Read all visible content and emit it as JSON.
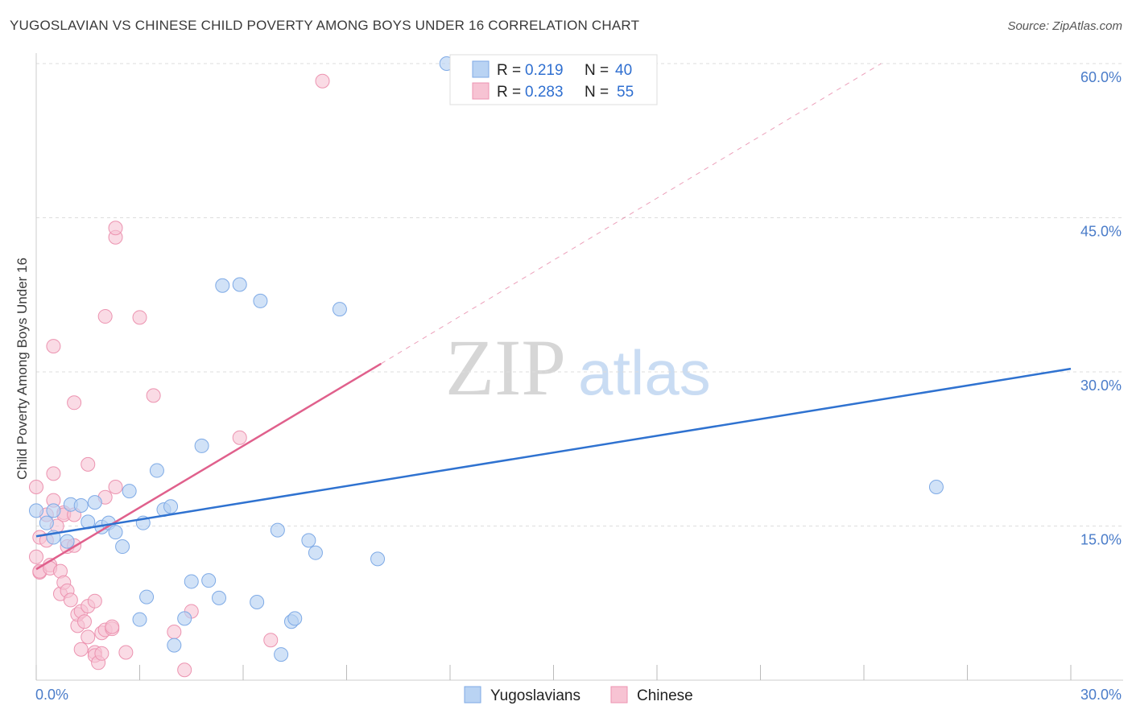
{
  "title": "YUGOSLAVIAN VS CHINESE CHILD POVERTY AMONG BOYS UNDER 16 CORRELATION CHART",
  "source": "Source: ZipAtlas.com",
  "watermark": {
    "zip": "ZIP",
    "atlas": "atlas"
  },
  "colors": {
    "blue_fill": "#b9d3f3",
    "blue_stroke": "#7eaae6",
    "blue_line": "#2f72d0",
    "pink_fill": "#f7c3d3",
    "pink_stroke": "#ec93b0",
    "pink_line": "#e0608c",
    "grid": "#dddddd",
    "axis_text": "#4a7cc9"
  },
  "legend": {
    "r_label": "R =",
    "n_label": "N =",
    "rows": [
      {
        "r": "0.219",
        "n": "40"
      },
      {
        "r": "0.283",
        "n": "55"
      }
    ]
  },
  "bottom_legend": [
    "Yugoslavians",
    "Chinese"
  ],
  "chart_data": {
    "type": "scatter",
    "title": "YUGOSLAVIAN VS CHINESE CHILD POVERTY AMONG BOYS UNDER 16 CORRELATION CHART",
    "xlabel": "",
    "ylabel": "Child Poverty Among Boys Under 16",
    "xlim": [
      0,
      30
    ],
    "ylim": [
      0,
      60
    ],
    "x_tick_labels": [
      "0.0%",
      "30.0%"
    ],
    "y_ticks": [
      15,
      30,
      45,
      60
    ],
    "y_tick_labels": [
      "15.0%",
      "30.0%",
      "45.0%",
      "60.0%"
    ],
    "grid": true,
    "legend_position": "top-center",
    "series": [
      {
        "name": "Yugoslavians",
        "r": 0.219,
        "n": 40,
        "trend": {
          "x": [
            0,
            30
          ],
          "y": [
            14.0,
            30.3
          ]
        },
        "points": [
          [
            0.0,
            16.5
          ],
          [
            0.3,
            15.3
          ],
          [
            0.5,
            16.5
          ],
          [
            0.5,
            13.9
          ],
          [
            0.9,
            13.5
          ],
          [
            1.0,
            17.1
          ],
          [
            1.3,
            17.0
          ],
          [
            1.5,
            15.4
          ],
          [
            1.7,
            17.3
          ],
          [
            1.9,
            14.9
          ],
          [
            2.1,
            15.3
          ],
          [
            2.3,
            14.4
          ],
          [
            2.5,
            13.0
          ],
          [
            2.7,
            18.4
          ],
          [
            3.0,
            5.9
          ],
          [
            3.1,
            15.3
          ],
          [
            3.2,
            8.1
          ],
          [
            3.5,
            20.4
          ],
          [
            3.7,
            16.6
          ],
          [
            3.9,
            16.9
          ],
          [
            4.0,
            3.4
          ],
          [
            4.3,
            6.0
          ],
          [
            4.5,
            9.6
          ],
          [
            4.8,
            22.8
          ],
          [
            5.0,
            9.7
          ],
          [
            5.3,
            8.0
          ],
          [
            5.4,
            38.4
          ],
          [
            5.9,
            38.5
          ],
          [
            6.4,
            7.6
          ],
          [
            6.5,
            36.9
          ],
          [
            7.0,
            14.6
          ],
          [
            7.1,
            2.5
          ],
          [
            7.4,
            5.7
          ],
          [
            7.5,
            6.0
          ],
          [
            7.9,
            13.6
          ],
          [
            8.1,
            12.4
          ],
          [
            8.8,
            36.1
          ],
          [
            9.9,
            11.8
          ],
          [
            11.9,
            60.0
          ],
          [
            26.1,
            18.8
          ]
        ]
      },
      {
        "name": "Chinese",
        "r": 0.283,
        "n": 55,
        "trend": {
          "x": [
            0,
            10
          ],
          "y": [
            10.8,
            30.8
          ]
        },
        "trend_dashed_to": {
          "x": 24.5,
          "y": 60.0
        },
        "points": [
          [
            0.0,
            18.8
          ],
          [
            0.0,
            12.0
          ],
          [
            0.1,
            10.5
          ],
          [
            0.1,
            10.6
          ],
          [
            0.1,
            13.9
          ],
          [
            0.3,
            16.1
          ],
          [
            0.3,
            13.6
          ],
          [
            0.4,
            11.2
          ],
          [
            0.4,
            10.9
          ],
          [
            0.5,
            32.5
          ],
          [
            0.5,
            20.1
          ],
          [
            0.5,
            17.5
          ],
          [
            0.6,
            15.0
          ],
          [
            0.7,
            10.6
          ],
          [
            0.7,
            8.4
          ],
          [
            0.8,
            9.5
          ],
          [
            0.8,
            16.3
          ],
          [
            0.8,
            16.1
          ],
          [
            0.9,
            13.0
          ],
          [
            0.9,
            8.7
          ],
          [
            1.0,
            7.8
          ],
          [
            1.1,
            27.0
          ],
          [
            1.1,
            13.1
          ],
          [
            1.1,
            16.1
          ],
          [
            1.2,
            5.3
          ],
          [
            1.2,
            6.4
          ],
          [
            1.3,
            3.0
          ],
          [
            1.3,
            6.7
          ],
          [
            1.4,
            5.7
          ],
          [
            1.5,
            7.2
          ],
          [
            1.5,
            4.2
          ],
          [
            1.5,
            21.0
          ],
          [
            1.7,
            7.7
          ],
          [
            1.7,
            2.7
          ],
          [
            1.7,
            2.4
          ],
          [
            1.8,
            1.7
          ],
          [
            1.9,
            2.6
          ],
          [
            1.9,
            4.6
          ],
          [
            2.0,
            4.9
          ],
          [
            2.0,
            17.8
          ],
          [
            2.0,
            35.4
          ],
          [
            2.2,
            5.0
          ],
          [
            2.2,
            5.2
          ],
          [
            2.3,
            43.1
          ],
          [
            2.3,
            44.0
          ],
          [
            2.3,
            18.8
          ],
          [
            2.6,
            2.7
          ],
          [
            3.0,
            35.3
          ],
          [
            3.4,
            27.7
          ],
          [
            4.0,
            4.7
          ],
          [
            4.3,
            1.0
          ],
          [
            4.5,
            6.7
          ],
          [
            5.9,
            23.6
          ],
          [
            6.8,
            3.9
          ],
          [
            8.3,
            58.3
          ]
        ]
      }
    ]
  }
}
